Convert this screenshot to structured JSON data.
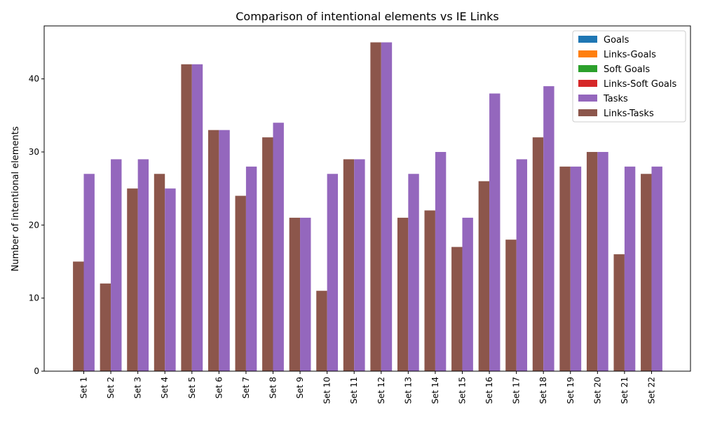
{
  "chart_data": {
    "type": "bar",
    "title": "Comparison of intentional elements vs IE Links",
    "xlabel": "",
    "ylabel": "Number of intentional elements",
    "ylim": [
      0,
      47.25
    ],
    "yticks": [
      0,
      10,
      20,
      30,
      40
    ],
    "grid": false,
    "legend_position": "top-right",
    "categories": [
      "Set 1",
      "Set 2",
      "Set 3",
      "Set 4",
      "Set 5",
      "Set 6",
      "Set 7",
      "Set 8",
      "Set 9",
      "Set 10",
      "Set 11",
      "Set 12",
      "Set 13",
      "Set 14",
      "Set 15",
      "Set 16",
      "Set 17",
      "Set 18",
      "Set 19",
      "Set 20",
      "Set 21",
      "Set 22"
    ],
    "series": [
      {
        "name": "Goals",
        "color": "#1f77b4",
        "values": [
          0,
          0,
          0,
          0,
          0,
          0,
          0,
          0,
          0,
          0,
          0,
          0,
          0,
          0,
          0,
          0,
          0,
          0,
          0,
          0,
          0,
          0
        ]
      },
      {
        "name": "Links-Goals",
        "color": "#ff7f0e",
        "values": [
          0,
          0,
          0,
          0,
          0,
          0,
          0,
          0,
          0,
          0,
          0,
          0,
          0,
          0,
          0,
          0,
          0,
          0,
          0,
          0,
          0,
          0
        ]
      },
      {
        "name": "Soft Goals",
        "color": "#2ca02c",
        "values": [
          0,
          0,
          0,
          0,
          0,
          0,
          0,
          0,
          0,
          0,
          0,
          0,
          0,
          0,
          0,
          0,
          0,
          0,
          0,
          0,
          0,
          0
        ]
      },
      {
        "name": "Links-Soft Goals",
        "color": "#d62728",
        "values": [
          0,
          0,
          0,
          0,
          0,
          0,
          0,
          0,
          0,
          0,
          0,
          0,
          0,
          0,
          0,
          0,
          0,
          0,
          0,
          0,
          0,
          0
        ]
      },
      {
        "name": "Tasks",
        "color": "#9467bd",
        "values": [
          27,
          29,
          29,
          25,
          42,
          33,
          28,
          34,
          21,
          27,
          29,
          45,
          27,
          30,
          21,
          38,
          29,
          39,
          28,
          30,
          28,
          28
        ]
      },
      {
        "name": "Links-Tasks",
        "color": "#8c564b",
        "values": [
          15,
          12,
          25,
          27,
          42,
          33,
          24,
          32,
          21,
          11,
          29,
          45,
          21,
          22,
          17,
          26,
          18,
          32,
          28,
          30,
          16,
          27
        ]
      }
    ]
  }
}
